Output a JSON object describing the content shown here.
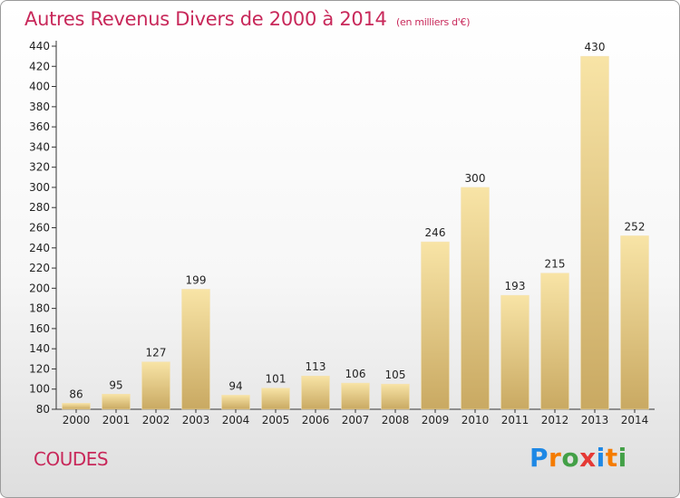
{
  "chart_data": {
    "type": "bar",
    "title": "Autres Revenus Divers de 2000 à 2014",
    "subtitle": "(en milliers d'€)",
    "categories": [
      "2000",
      "2001",
      "2002",
      "2003",
      "2004",
      "2005",
      "2006",
      "2007",
      "2008",
      "2009",
      "2010",
      "2011",
      "2012",
      "2013",
      "2014"
    ],
    "values": [
      86,
      95,
      127,
      199,
      94,
      101,
      113,
      106,
      105,
      246,
      300,
      193,
      215,
      430,
      252
    ],
    "ylim": [
      80,
      440
    ],
    "yticks": [
      80,
      100,
      120,
      140,
      160,
      180,
      200,
      220,
      240,
      260,
      280,
      300,
      320,
      340,
      360,
      380,
      400,
      420,
      440
    ],
    "grid": false,
    "colors": {
      "bar_light": "#f8e4a6",
      "bar_dark": "#c9a962",
      "title": "#c8285a"
    }
  },
  "place_name": "COUDES",
  "logo": {
    "letters": [
      "P",
      "r",
      "o",
      "x",
      "i",
      "t",
      "i"
    ],
    "colors": [
      "#1e88e5",
      "#f57c00",
      "#43a047",
      "#e53935",
      "#1e88e5",
      "#f57c00",
      "#43a047"
    ]
  }
}
